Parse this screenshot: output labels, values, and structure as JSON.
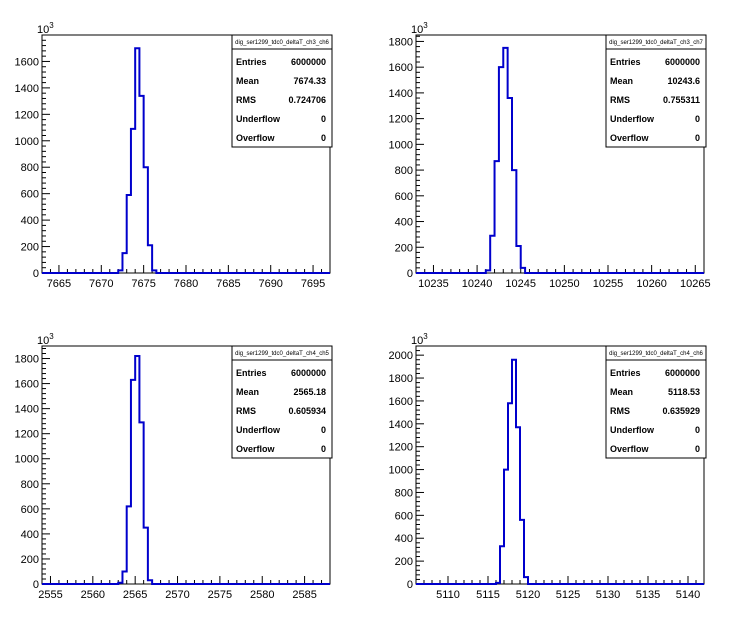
{
  "chart_data": [
    {
      "type": "histogram",
      "name": "dig_ser1299_tdc0_deltaT_ch3_ch6",
      "multiplier": "10",
      "multiplier_exp": "3",
      "xlim": [
        7663,
        7697
      ],
      "ylim": [
        0,
        1800
      ],
      "xticks": [
        7665,
        7670,
        7675,
        7680,
        7685,
        7690,
        7695
      ],
      "yticks": [
        0,
        200,
        400,
        600,
        800,
        1000,
        1200,
        1400,
        1600
      ],
      "bin_width": 0.5,
      "bins_x": [
        7669.5,
        7670,
        7670.5,
        7671,
        7671.5,
        7672,
        7672.5,
        7673,
        7673.5,
        7674,
        7674.5,
        7675,
        7675.5,
        7676,
        7676.5,
        7677
      ],
      "bins_y": [
        0,
        0,
        0,
        0,
        0,
        20,
        150,
        590,
        1090,
        1700,
        1340,
        800,
        210,
        20,
        0,
        0
      ],
      "stats": [
        {
          "label": "Entries",
          "value": "6000000"
        },
        {
          "label": "Mean",
          "value": "7674.33"
        },
        {
          "label": "RMS",
          "value": "0.724706"
        },
        {
          "label": "Underflow",
          "value": "0"
        },
        {
          "label": "Overflow",
          "value": "0"
        }
      ]
    },
    {
      "type": "histogram",
      "name": "dig_ser1299_tdc0_deltaT_ch3_ch7",
      "multiplier": "10",
      "multiplier_exp": "3",
      "xlim": [
        10233,
        10266
      ],
      "ylim": [
        0,
        1850
      ],
      "xticks": [
        10235,
        10240,
        10245,
        10250,
        10255,
        10260,
        10265
      ],
      "yticks": [
        0,
        200,
        400,
        600,
        800,
        1000,
        1200,
        1400,
        1600,
        1800
      ],
      "bin_width": 0.5,
      "bins_x": [
        10240,
        10240.5,
        10241,
        10241.5,
        10242,
        10242.5,
        10243,
        10243.5,
        10244,
        10244.5,
        10245,
        10245.5,
        10246,
        10246.5
      ],
      "bins_y": [
        0,
        0,
        20,
        290,
        870,
        1600,
        1750,
        1360,
        800,
        210,
        40,
        0,
        0,
        0
      ],
      "stats": [
        {
          "label": "Entries",
          "value": "6000000"
        },
        {
          "label": "Mean",
          "value": "10243.6"
        },
        {
          "label": "RMS",
          "value": "0.755311"
        },
        {
          "label": "Underflow",
          "value": "0"
        },
        {
          "label": "Overflow",
          "value": "0"
        }
      ]
    },
    {
      "type": "histogram",
      "name": "dig_ser1299_tdc0_deltaT_ch4_ch5",
      "multiplier": "10",
      "multiplier_exp": "3",
      "xlim": [
        2554,
        2588
      ],
      "ylim": [
        0,
        1900
      ],
      "xticks": [
        2555,
        2560,
        2565,
        2570,
        2575,
        2580,
        2585
      ],
      "yticks": [
        0,
        200,
        400,
        600,
        800,
        1000,
        1200,
        1400,
        1600,
        1800
      ],
      "bin_width": 0.5,
      "bins_x": [
        2562,
        2562.5,
        2563,
        2563.5,
        2564,
        2564.5,
        2565,
        2565.5,
        2566,
        2566.5,
        2567,
        2567.5
      ],
      "bins_y": [
        0,
        0,
        10,
        100,
        620,
        1630,
        1820,
        1290,
        450,
        30,
        0,
        0
      ],
      "stats": [
        {
          "label": "Entries",
          "value": "6000000"
        },
        {
          "label": "Mean",
          "value": "2565.18"
        },
        {
          "label": "RMS",
          "value": "0.605934"
        },
        {
          "label": "Underflow",
          "value": "0"
        },
        {
          "label": "Overflow",
          "value": "0"
        }
      ]
    },
    {
      "type": "histogram",
      "name": "dig_ser1299_tdc0_deltaT_ch4_ch6",
      "multiplier": "10",
      "multiplier_exp": "3",
      "xlim": [
        5106,
        5142
      ],
      "ylim": [
        0,
        2080
      ],
      "xticks": [
        5110,
        5115,
        5120,
        5125,
        5130,
        5135,
        5140
      ],
      "yticks": [
        0,
        200,
        400,
        600,
        800,
        1000,
        1200,
        1400,
        1600,
        1800,
        2000
      ],
      "bin_width": 0.5,
      "bins_x": [
        5115,
        5115.5,
        5116,
        5116.5,
        5117,
        5117.5,
        5118,
        5118.5,
        5119,
        5119.5,
        5120,
        5120.5,
        5121
      ],
      "bins_y": [
        0,
        0,
        10,
        330,
        1000,
        1580,
        1960,
        1370,
        560,
        60,
        0,
        0,
        0
      ],
      "stats": [
        {
          "label": "Entries",
          "value": "6000000"
        },
        {
          "label": "Mean",
          "value": "5118.53"
        },
        {
          "label": "RMS",
          "value": "0.635929"
        },
        {
          "label": "Underflow",
          "value": "0"
        },
        {
          "label": "Overflow",
          "value": "0"
        }
      ]
    }
  ],
  "colors": {
    "histogram_line": "#0000cc",
    "axis": "#000000",
    "background": "#ffffff"
  }
}
